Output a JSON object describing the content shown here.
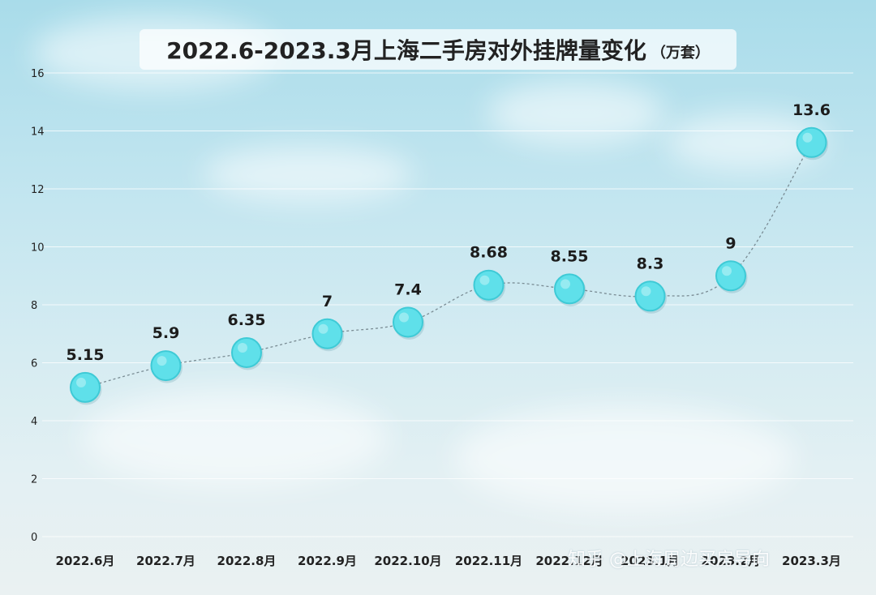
{
  "title": "2022.6-2023.3月上海二手房对外挂牌量变化",
  "unit": "（万套）",
  "watermark": "知乎 @上海周边买房导向",
  "colors": {
    "point_fill": "#5fe0ea",
    "point_stroke": "#3ecad6",
    "line": "#7a8c94",
    "grid": "#ffffff"
  },
  "chart_data": {
    "type": "line",
    "title": "2022.6-2023.3月上海二手房对外挂牌量变化（万套）",
    "categories": [
      "2022.6月",
      "2022.7月",
      "2022.8月",
      "2022.9月",
      "2022.10月",
      "2022.11月",
      "2022.12月",
      "2023.1月",
      "2023.2月",
      "2023.3月"
    ],
    "values": [
      5.15,
      5.9,
      6.35,
      7,
      7.4,
      8.68,
      8.55,
      8.3,
      9,
      13.6
    ],
    "value_labels": [
      "5.15",
      "5.9",
      "6.35",
      "7",
      "7.4",
      "8.68",
      "8.55",
      "8.3",
      "9",
      "13.6"
    ],
    "xlabel": "",
    "ylabel": "",
    "ylim": [
      0,
      16
    ],
    "yticks": [
      "0",
      "2",
      "4",
      "6",
      "8",
      "10",
      "12",
      "14",
      "16"
    ],
    "grid": true,
    "line_style": "dashed"
  }
}
